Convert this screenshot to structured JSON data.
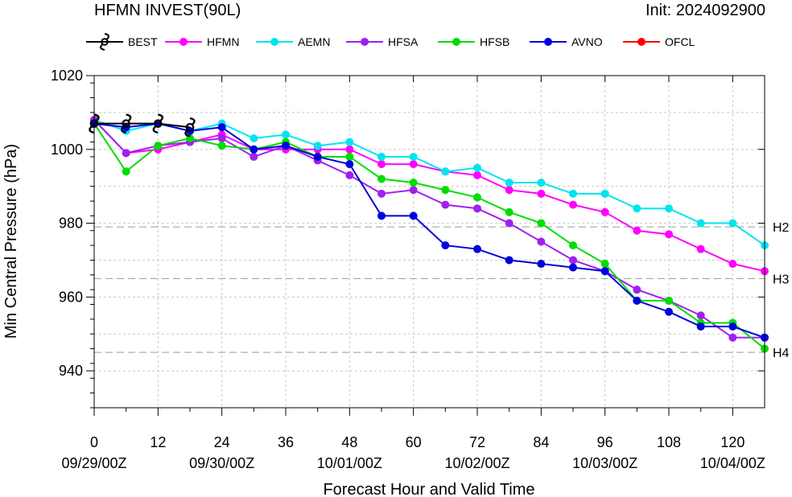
{
  "header": {
    "title": "HFMN INVEST(90L)",
    "init": "Init: 2024092900"
  },
  "chart_data": {
    "type": "line",
    "xlabel": "Forecast Hour and Valid Time",
    "ylabel": "Min Central Pressure (hPa)",
    "xlim": [
      0,
      126
    ],
    "ylim": [
      930,
      1020
    ],
    "grid": true,
    "legend_position": "top",
    "x_ticks": [
      0,
      12,
      24,
      36,
      48,
      60,
      72,
      84,
      96,
      108,
      120
    ],
    "x_tick_labels": [
      "0",
      "12",
      "24",
      "36",
      "48",
      "60",
      "72",
      "84",
      "96",
      "108",
      "120"
    ],
    "date_labels": [
      {
        "x": 0,
        "label": "09/29/00Z"
      },
      {
        "x": 24,
        "label": "09/30/00Z"
      },
      {
        "x": 48,
        "label": "10/01/00Z"
      },
      {
        "x": 72,
        "label": "10/02/00Z"
      },
      {
        "x": 96,
        "label": "10/03/00Z"
      },
      {
        "x": 120,
        "label": "10/04/00Z"
      }
    ],
    "y_ticks": [
      940,
      960,
      980,
      1000,
      1020
    ],
    "y_tick_labels": [
      "940",
      "960",
      "980",
      "1000",
      "1020"
    ],
    "reference_lines": [
      {
        "label": "H2",
        "value": 979
      },
      {
        "label": "H3",
        "value": 965
      },
      {
        "label": "H4",
        "value": 945
      }
    ],
    "series": [
      {
        "name": "BEST",
        "color": "#000000",
        "marker": "hurricane-symbol",
        "x": [
          0,
          6,
          12,
          18
        ],
        "values": [
          1007,
          1007,
          1007,
          1006
        ]
      },
      {
        "name": "HFMN",
        "color": "#ff00ff",
        "marker": "circle",
        "x": [
          0,
          6,
          12,
          18,
          24,
          30,
          36,
          42,
          48,
          54,
          60,
          66,
          72,
          78,
          84,
          90,
          96,
          102,
          108,
          114,
          120,
          126
        ],
        "values": [
          1008,
          999,
          1000,
          1002,
          1004,
          1000,
          1000,
          1000,
          1000,
          996,
          996,
          994,
          993,
          989,
          988,
          985,
          983,
          978,
          977,
          973,
          969,
          967
        ]
      },
      {
        "name": "AEMN",
        "color": "#00e5ee",
        "marker": "circle",
        "x": [
          0,
          6,
          12,
          18,
          24,
          30,
          36,
          42,
          48,
          54,
          60,
          66,
          72,
          78,
          84,
          90,
          96,
          102,
          108,
          114,
          120,
          126
        ],
        "values": [
          1008,
          1005,
          1007,
          1005,
          1007,
          1003,
          1004,
          1001,
          1002,
          998,
          998,
          994,
          995,
          991,
          991,
          988,
          988,
          984,
          984,
          980,
          980,
          974
        ]
      },
      {
        "name": "HFSA",
        "color": "#a020f0",
        "marker": "circle",
        "x": [
          0,
          6,
          12,
          18,
          24,
          30,
          36,
          42,
          48,
          54,
          60,
          66,
          72,
          78,
          84,
          90,
          96,
          102,
          108,
          114,
          120,
          126
        ],
        "values": [
          1008,
          999,
          1001,
          1002,
          1003,
          998,
          1001,
          997,
          993,
          988,
          989,
          985,
          984,
          980,
          975,
          970,
          967,
          962,
          959,
          955,
          949,
          949
        ]
      },
      {
        "name": "HFSB",
        "color": "#00dd00",
        "marker": "circle",
        "x": [
          0,
          6,
          12,
          18,
          24,
          30,
          36,
          42,
          48,
          54,
          60,
          66,
          72,
          78,
          84,
          90,
          96,
          102,
          108,
          114,
          120,
          126
        ],
        "values": [
          1007,
          994,
          1001,
          1003,
          1001,
          1000,
          1002,
          998,
          998,
          992,
          991,
          989,
          987,
          983,
          980,
          974,
          969,
          959,
          959,
          953,
          953,
          946
        ]
      },
      {
        "name": "AVNO",
        "color": "#0000dd",
        "marker": "circle",
        "x": [
          0,
          6,
          12,
          18,
          24,
          30,
          36,
          42,
          48,
          54,
          60,
          66,
          72,
          78,
          84,
          90,
          96,
          102,
          108,
          114,
          120,
          126
        ],
        "values": [
          1007,
          1006,
          1007,
          1005,
          1006,
          1000,
          1001,
          998,
          996,
          982,
          982,
          974,
          973,
          970,
          969,
          968,
          967,
          959,
          956,
          952,
          952,
          949
        ]
      },
      {
        "name": "OFCL",
        "color": "#ff0000",
        "marker": "circle",
        "x": [],
        "values": []
      }
    ]
  }
}
